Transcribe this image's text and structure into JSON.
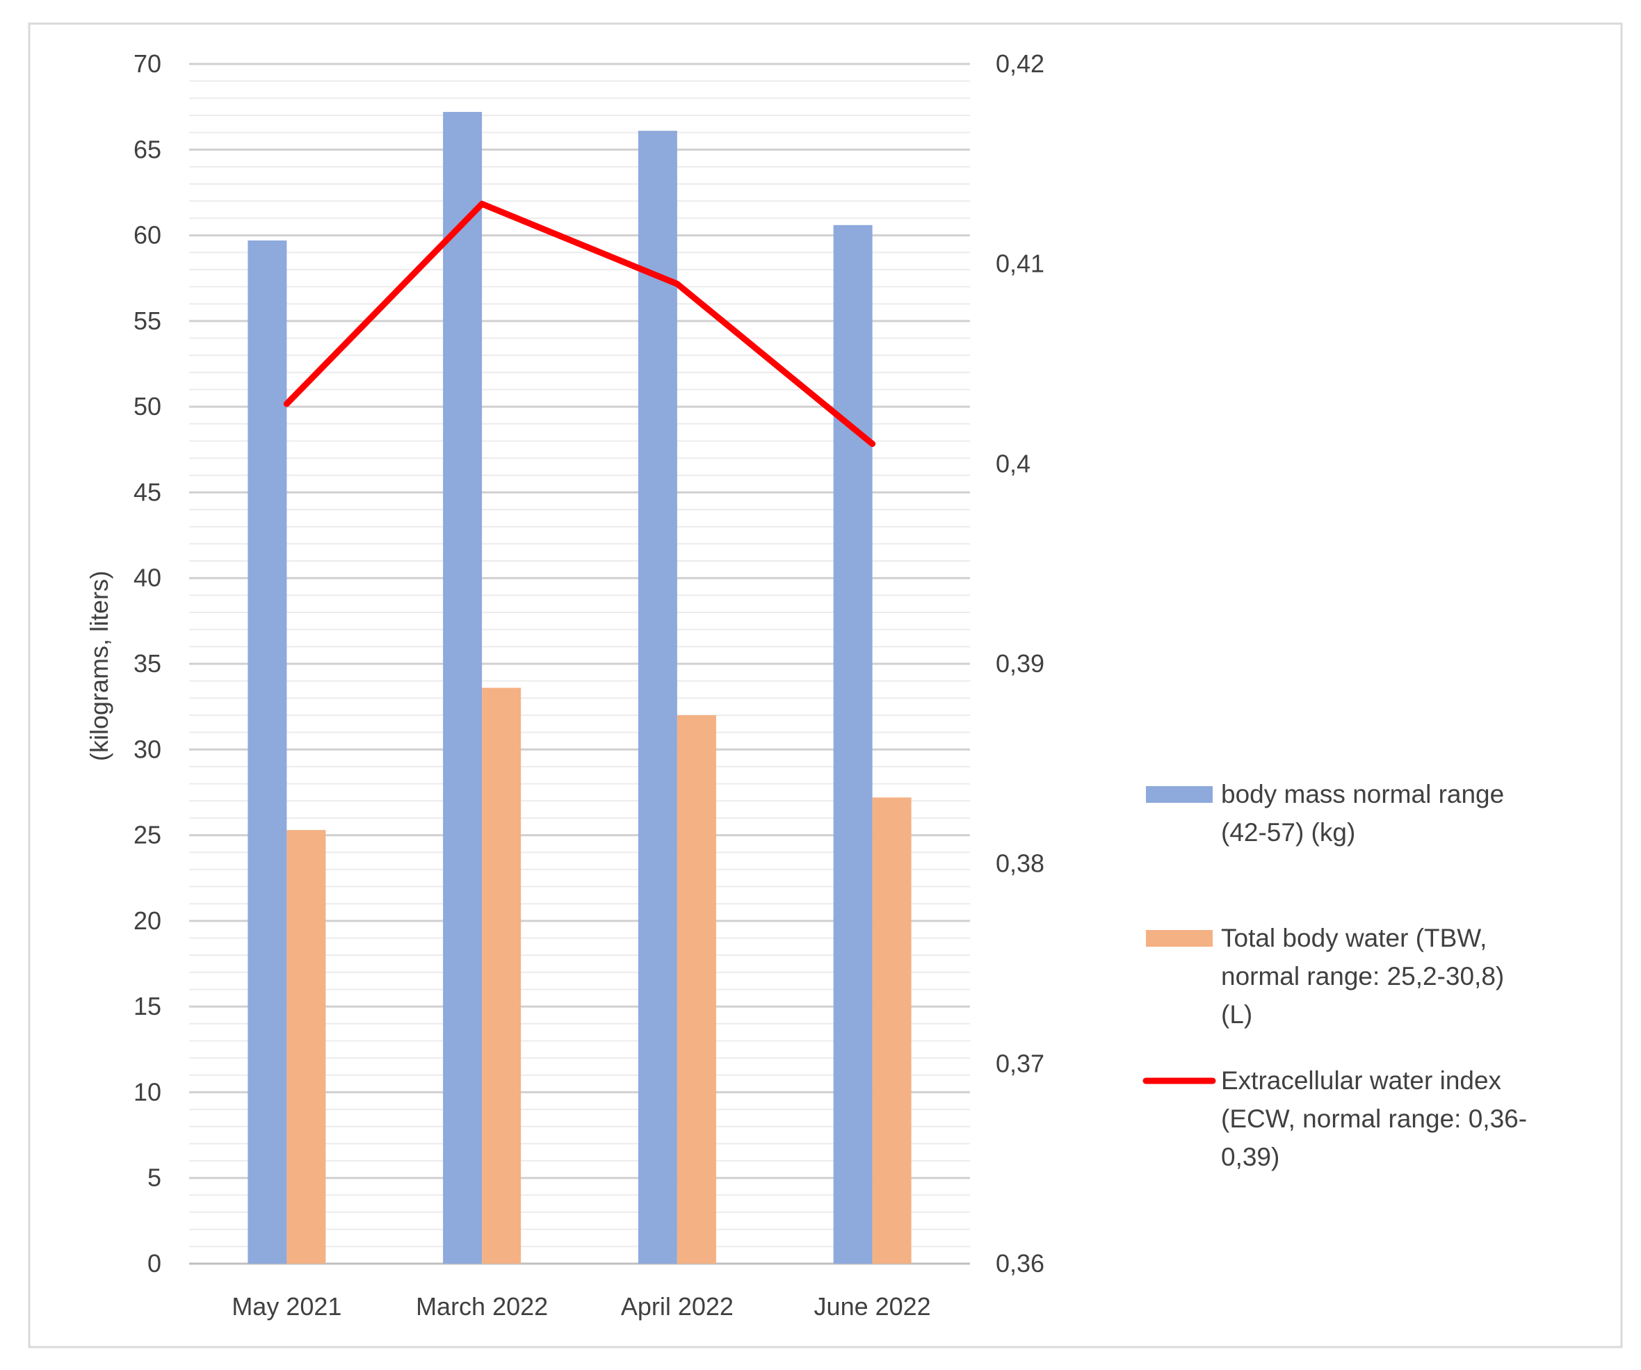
{
  "chart_data": {
    "type": "bar",
    "title": "",
    "xlabel": "",
    "ylabel": "(kilograms, liters)",
    "ylabel_right": "",
    "categories": [
      "May 2021",
      "March 2022",
      "April 2022",
      "June 2022"
    ],
    "ylim": [
      0,
      70
    ],
    "yticks": [
      "0",
      "5",
      "10",
      "15",
      "20",
      "25",
      "30",
      "35",
      "40",
      "45",
      "50",
      "55",
      "60",
      "65",
      "70"
    ],
    "y2lim": [
      0.36,
      0.42
    ],
    "y2ticks": [
      "0,36",
      "0,37",
      "0,38",
      "0,39",
      "0,4",
      "0,41",
      "0,42"
    ],
    "grid": true,
    "legend_position": "right",
    "series": [
      {
        "name": "body mass normal range (42-57) (kg)",
        "legend_lines": [
          "body mass normal range",
          "(42-57) (kg)"
        ],
        "type": "bar",
        "axis": "left",
        "color": "#8EA9DB",
        "values": [
          59.7,
          67.2,
          66.1,
          60.6
        ]
      },
      {
        "name": "Total body water (TBW, normal range: 25,2-30,8) (L)",
        "legend_lines": [
          "Total body water (TBW,",
          "normal range: 25,2-30,8)",
          "(L)"
        ],
        "type": "bar",
        "axis": "left",
        "color": "#F4B183",
        "values": [
          25.3,
          33.6,
          32.0,
          27.2
        ]
      },
      {
        "name": "Extracellular water index (ECW, normal range: 0,36-0,39)",
        "legend_lines": [
          "Extracellular water index",
          "(ECW, normal range: 0,36-",
          "0,39)"
        ],
        "type": "line",
        "axis": "right",
        "color": "#FF0000",
        "values": [
          0.403,
          0.413,
          0.409,
          0.401
        ]
      }
    ]
  }
}
